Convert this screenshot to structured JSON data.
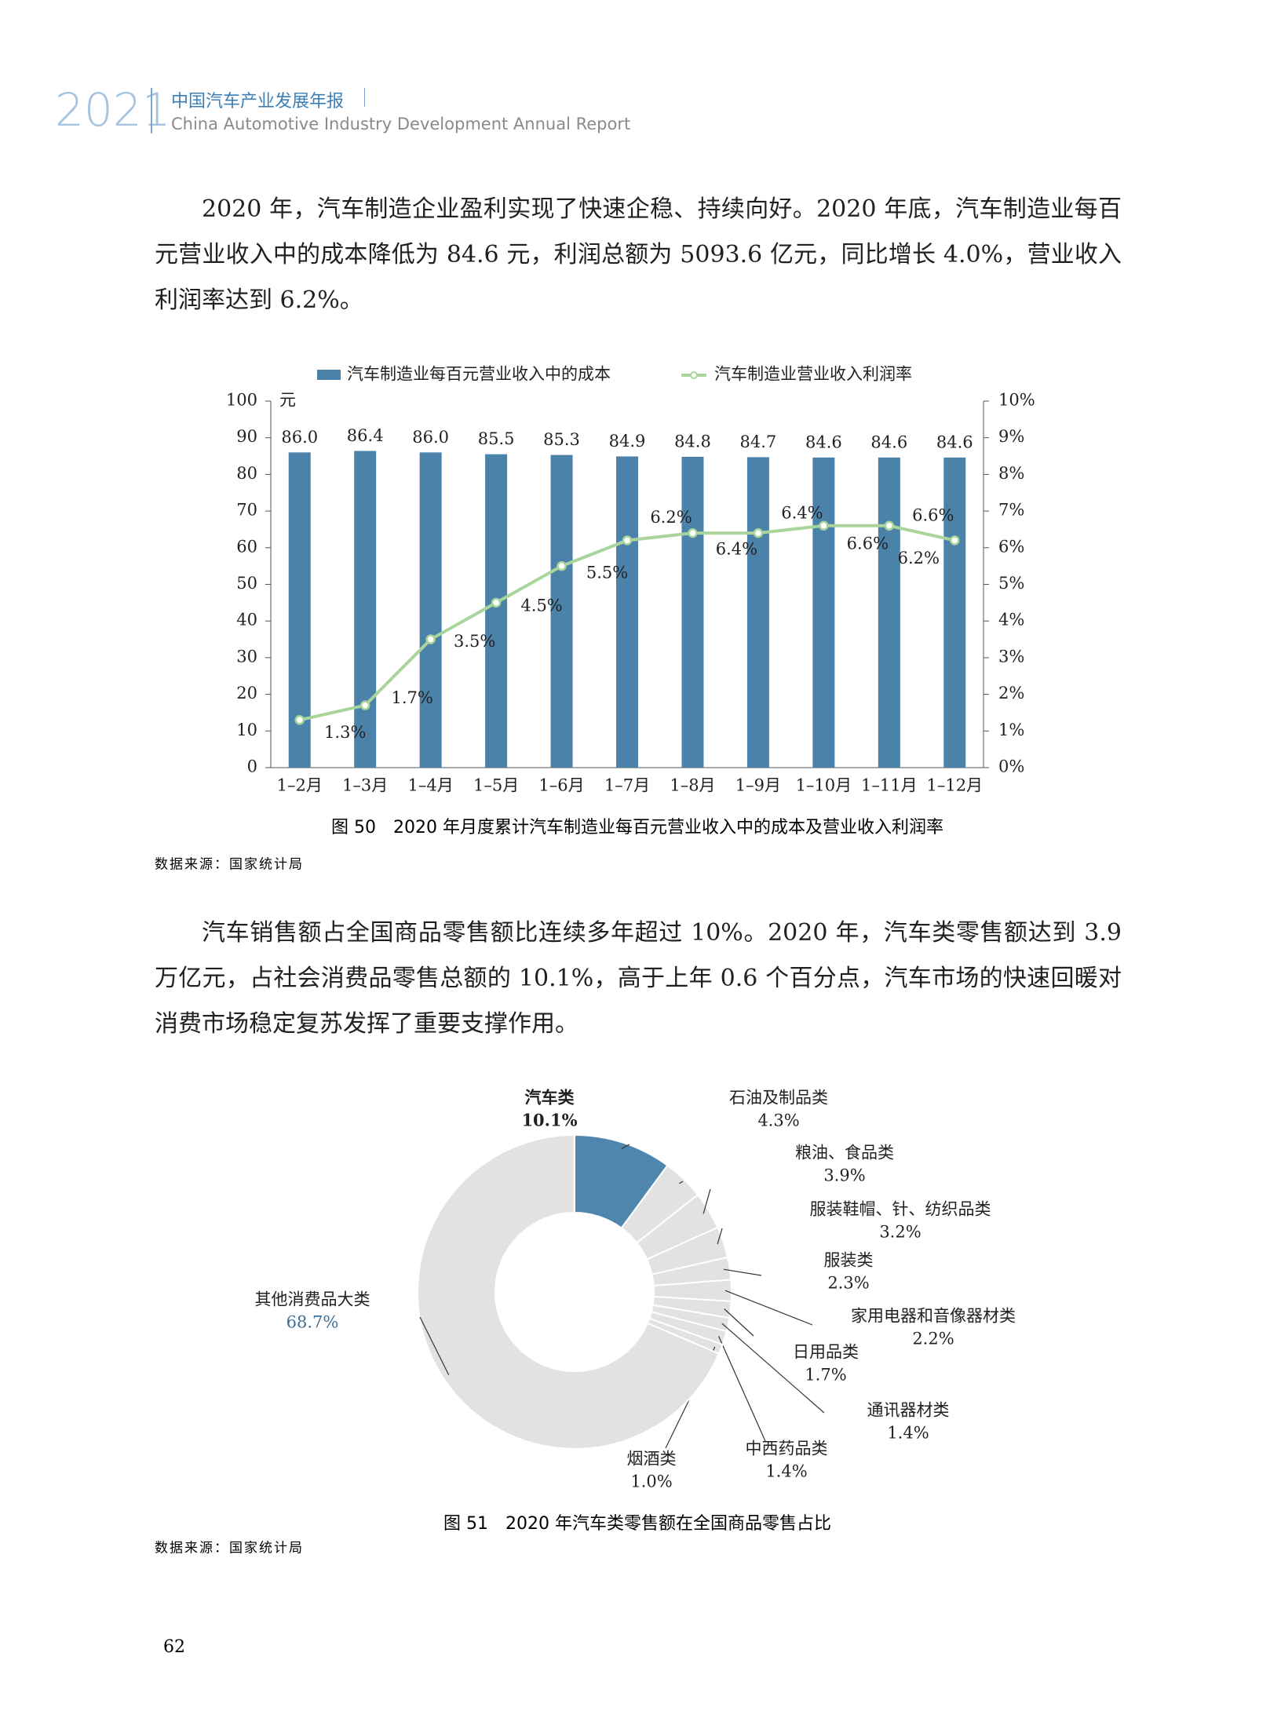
{
  "header": {
    "year": "2021",
    "title_cn": "中国汽车产业发展年报",
    "title_en": "China Automotive Industry Development Annual Report"
  },
  "paragraphs": [
    "2020 年，汽车制造企业盈利实现了快速企稳、持续向好。2020 年底，汽车制造业每百元营业收入中的成本降低为 84.6 元，利润总额为 5093.6 亿元，同比增长 4.0%，营业收入利润率达到 6.2%。",
    "汽车销售额占全国商品零售额比连续多年超过 10%。2020 年，汽车类零售额达到 3.9 万亿元，占社会消费品零售总额的 10.1%，高于上年 0.6 个百分点，汽车市场的快速回暖对消费市场稳定复苏发挥了重要支撑作用。"
  ],
  "chart_data": [
    {
      "type": "bar",
      "y_unit": "元",
      "categories": [
        "1–2月",
        "1–3月",
        "1–4月",
        "1–5月",
        "1–6月",
        "1–7月",
        "1–8月",
        "1–9月",
        "1–10月",
        "1–11月",
        "1–12月"
      ],
      "series": [
        {
          "name": "汽车制造业每百元营业收入中的成本",
          "type": "bar",
          "color": "#4a82a9",
          "values": [
            86.0,
            86.4,
            86.0,
            85.5,
            85.3,
            84.9,
            84.8,
            84.7,
            84.6,
            84.6,
            84.6
          ],
          "value_labels": [
            "86.0",
            "86.4",
            "86.0",
            "85.5",
            "85.3",
            "84.9",
            "84.8",
            "84.7",
            "84.6",
            "84.6",
            "84.6"
          ]
        },
        {
          "name": "汽车制造业营业收入利润率",
          "type": "line",
          "axis": "y2",
          "color": "#a9d59c",
          "values": [
            1.3,
            1.7,
            3.5,
            4.5,
            5.5,
            6.2,
            6.4,
            6.4,
            6.6,
            6.6,
            6.2
          ],
          "value_labels": [
            "1.3%",
            "1.7%",
            "3.5%",
            "4.5%",
            "5.5%",
            "6.2%",
            "6.4%",
            "6.4%",
            "6.6%",
            "6.6%",
            "6.2%"
          ]
        }
      ],
      "ylim": [
        0,
        100
      ],
      "yticks": [
        0,
        10,
        20,
        30,
        40,
        50,
        60,
        70,
        80,
        90,
        100
      ],
      "y2lim": [
        0,
        10
      ],
      "y2ticks": [
        {
          "value": 0,
          "label": "0%"
        },
        {
          "value": 1,
          "label": "1%"
        },
        {
          "value": 2,
          "label": "2%"
        },
        {
          "value": 3,
          "label": "3%"
        },
        {
          "value": 4,
          "label": "4%"
        },
        {
          "value": 5,
          "label": "5%"
        },
        {
          "value": 6,
          "label": "6%"
        },
        {
          "value": 7,
          "label": "7%"
        },
        {
          "value": 8,
          "label": "8%"
        },
        {
          "value": 9,
          "label": "9%"
        },
        {
          "value": 10,
          "label": "10%"
        }
      ],
      "legend": "top",
      "caption": "图 50　2020 年月度累计汽车制造业每百元营业收入中的成本及营业收入利润率",
      "source": "数据来源：国家统计局"
    },
    {
      "type": "donut",
      "categories": [
        "汽车类",
        "石油及制品类",
        "粮油、食品类",
        "服装鞋帽、针、纺织品类",
        "服装类",
        "家用电器和音像器材类",
        "日用品类",
        "通讯器材类",
        "中西药品类",
        "烟酒类",
        "其他消费品大类"
      ],
      "values": [
        10.1,
        4.3,
        3.9,
        3.2,
        2.3,
        2.2,
        1.7,
        1.4,
        1.4,
        1.0,
        68.7
      ],
      "value_labels": [
        "10.1%",
        "4.3%",
        "3.9%",
        "3.2%",
        "2.3%",
        "2.2%",
        "1.7%",
        "1.4%",
        "1.4%",
        "1.0%",
        "68.7%"
      ],
      "colors": [
        "#4f86ad",
        "#e2e2e2",
        "#e2e2e2",
        "#e2e2e2",
        "#e2e2e2",
        "#e2e2e2",
        "#e2e2e2",
        "#e2e2e2",
        "#e2e2e2",
        "#e2e2e2",
        "#e2e2e2"
      ],
      "caption": "图 51　2020 年汽车类零售额在全国商品零售占比",
      "source": "数据来源：国家统计局"
    }
  ],
  "page_number": "62"
}
